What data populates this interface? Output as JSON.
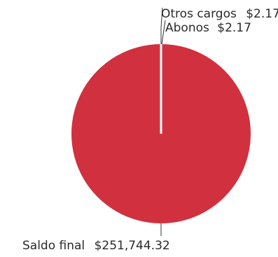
{
  "chart_data": {
    "type": "pie",
    "categories": [
      "Saldo final",
      "Otros cargos",
      "Abonos"
    ],
    "values": [
      251744.32,
      2.17,
      2.17
    ],
    "labels": [
      {
        "name": "Otros cargos",
        "value_text": "$2.17"
      },
      {
        "name": "Abonos",
        "value_text": "$2.17"
      },
      {
        "name": "Saldo final",
        "value_text": "$251,744.32"
      }
    ],
    "colors": {
      "slice": "#d1303f",
      "separator": "#ffffff",
      "leader_line": "#333333",
      "text": "#2a2a2a"
    }
  }
}
